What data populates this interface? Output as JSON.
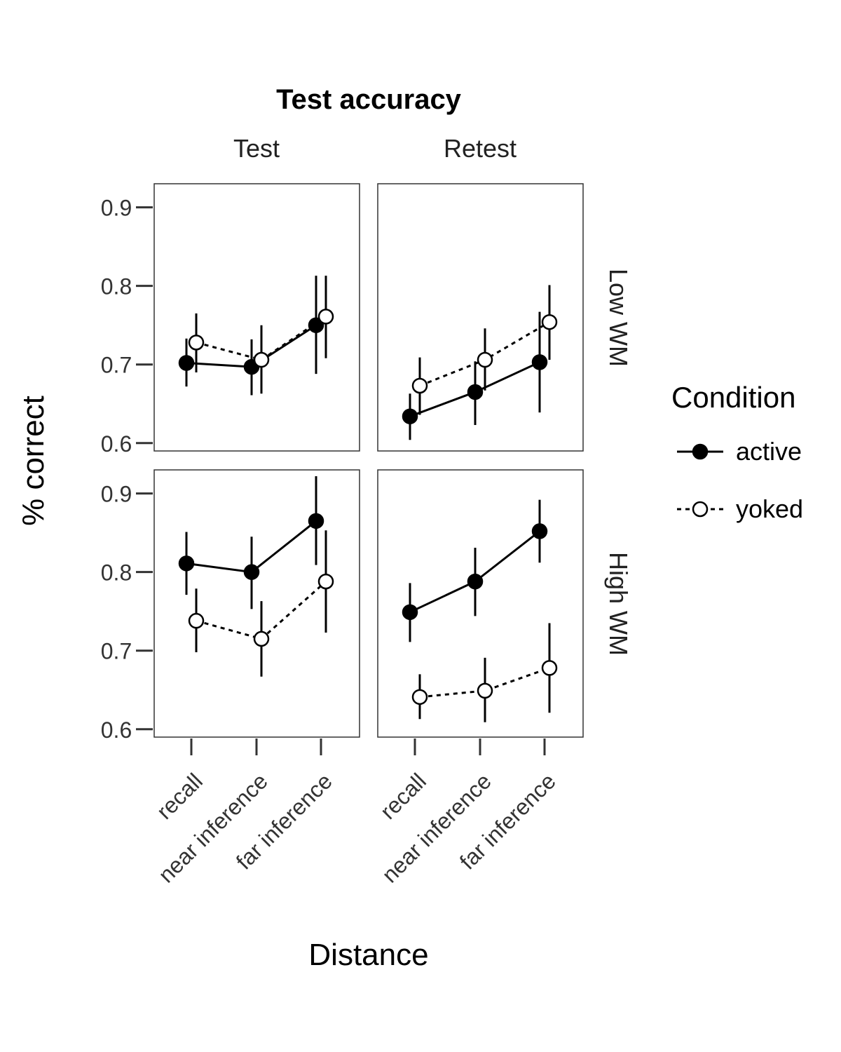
{
  "chart_data": {
    "type": "line",
    "title": "Test accuracy",
    "xlabel": "Distance",
    "ylabel": "% correct",
    "categories": [
      "recall",
      "near inference",
      "far inference"
    ],
    "ylim": [
      0.59,
      0.93
    ],
    "yticks": [
      0.6,
      0.7,
      0.8,
      0.9
    ],
    "ytick_labels": [
      "0.6",
      "0.7",
      "0.8",
      "0.9"
    ],
    "grid": false,
    "columns": [
      "Test",
      "Retest"
    ],
    "rows": [
      "Low WM",
      "High WM"
    ],
    "legend": {
      "title": "Condition",
      "placement": "right",
      "entries": [
        {
          "name": "active",
          "marker": "filled-circle",
          "line": "solid"
        },
        {
          "name": "yoked",
          "marker": "open-circle",
          "line": "dashed"
        }
      ]
    },
    "panels": [
      {
        "column": "Test",
        "row": "Low WM",
        "series": [
          {
            "name": "active",
            "values": [
              0.702,
              0.697,
              0.75
            ],
            "lower": [
              0.672,
              0.661,
              0.688
            ],
            "upper": [
              0.733,
              0.732,
              0.813
            ]
          },
          {
            "name": "yoked",
            "values": [
              0.728,
              0.706,
              0.761
            ],
            "lower": [
              0.69,
              0.663,
              0.708
            ],
            "upper": [
              0.765,
              0.75,
              0.813
            ]
          }
        ]
      },
      {
        "column": "Retest",
        "row": "Low WM",
        "series": [
          {
            "name": "active",
            "values": [
              0.634,
              0.665,
              0.703
            ],
            "lower": [
              0.604,
              0.623,
              0.639
            ],
            "upper": [
              0.663,
              0.704,
              0.767
            ]
          },
          {
            "name": "yoked",
            "values": [
              0.673,
              0.706,
              0.754
            ],
            "lower": [
              0.636,
              0.667,
              0.706
            ],
            "upper": [
              0.709,
              0.746,
              0.801
            ]
          }
        ]
      },
      {
        "column": "Test",
        "row": "High WM",
        "series": [
          {
            "name": "active",
            "values": [
              0.811,
              0.8,
              0.865
            ],
            "lower": [
              0.771,
              0.753,
              0.809
            ],
            "upper": [
              0.851,
              0.845,
              0.922
            ]
          },
          {
            "name": "yoked",
            "values": [
              0.738,
              0.715,
              0.788
            ],
            "lower": [
              0.698,
              0.667,
              0.723
            ],
            "upper": [
              0.779,
              0.763,
              0.853
            ]
          }
        ]
      },
      {
        "column": "Retest",
        "row": "High WM",
        "series": [
          {
            "name": "active",
            "values": [
              0.749,
              0.788,
              0.852
            ],
            "lower": [
              0.711,
              0.744,
              0.812
            ],
            "upper": [
              0.786,
              0.831,
              0.892
            ]
          },
          {
            "name": "yoked",
            "values": [
              0.641,
              0.649,
              0.678
            ],
            "lower": [
              0.613,
              0.609,
              0.621
            ],
            "upper": [
              0.67,
              0.691,
              0.735
            ]
          }
        ]
      }
    ]
  }
}
